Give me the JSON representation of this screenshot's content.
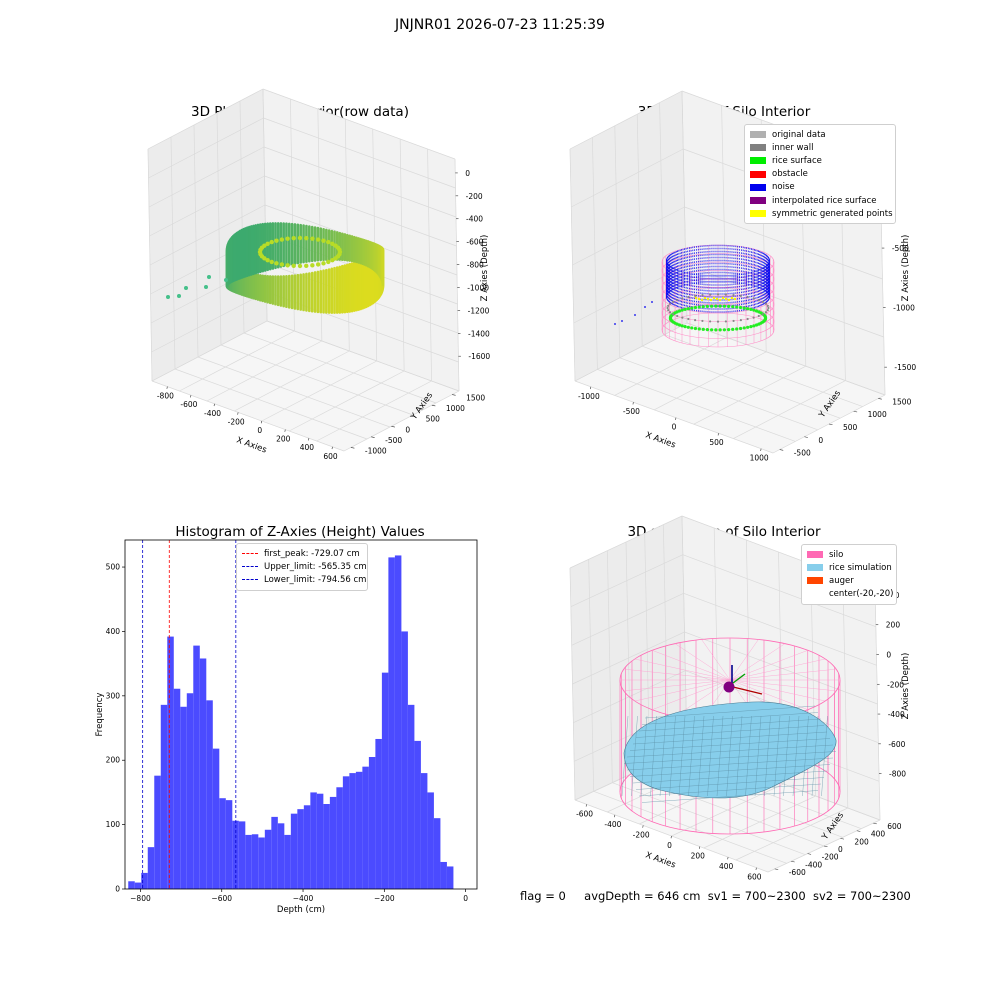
{
  "suptitle": "JNJNR01 2026-07-23 11:25:39",
  "panels": {
    "raw": {
      "title": "3D Plot of Silo Interior(row data)",
      "x_label": "X Axies",
      "y_label": "Y Axies",
      "z_label": "Z Axies (Depth)",
      "x_ticks": [
        "-800",
        "-600",
        "-400",
        "-200",
        "0",
        "200",
        "400",
        "600"
      ],
      "y_ticks": [
        "-1000",
        "-500",
        "0",
        "500",
        "1000",
        "1500"
      ],
      "z_ticks": [
        "0",
        "-200",
        "-400",
        "-600",
        "-800",
        "-1000",
        "-1200",
        "-1400",
        "-1600"
      ]
    },
    "classify": {
      "title": "3D classify of Silo Interior",
      "x_label": "X Axies",
      "y_label": "Y Axies",
      "z_label": "Z Axies (Depth)",
      "x_ticks": [
        "-1000",
        "-500",
        "0",
        "500",
        "1000"
      ],
      "y_ticks": [
        "-500",
        "0",
        "500",
        "1000",
        "1500"
      ],
      "z_ticks": [
        "0",
        "-500",
        "-1000",
        "-1500"
      ],
      "legend": [
        {
          "label": "original data",
          "color": "#b0b0b0"
        },
        {
          "label": "inner wall",
          "color": "#808080"
        },
        {
          "label": "rice surface",
          "color": "#00ee00"
        },
        {
          "label": "obstacle",
          "color": "#ff0000"
        },
        {
          "label": "noise",
          "color": "#0000ee"
        },
        {
          "label": "interpolated rice surface",
          "color": "#800080"
        },
        {
          "label": "symmetric generated points",
          "color": "#ffff00"
        }
      ]
    },
    "simulation": {
      "title": "3D simulation of Silo Interior",
      "x_label": "X Axies",
      "y_label": "Y Axies",
      "z_label": "Z Axies (Depth)",
      "x_ticks": [
        "-600",
        "-400",
        "-200",
        "0",
        "200",
        "400",
        "600"
      ],
      "y_ticks": [
        "-600",
        "-400",
        "-200",
        "0",
        "200",
        "400",
        "600"
      ],
      "z_ticks": [
        "400",
        "200",
        "0",
        "-200",
        "-400",
        "-600",
        "-800"
      ],
      "legend": [
        {
          "label": "silo",
          "color": "#ff69b4"
        },
        {
          "label": "rice simulation",
          "color": "#87ceeb"
        },
        {
          "label": "auger",
          "color": "#ff4500"
        },
        {
          "label": "center(-20,-20)",
          "color": ""
        }
      ]
    }
  },
  "chart_data": {
    "type": "bar",
    "title": "Histogram of Z-Axies (Height) Values",
    "xlabel": "Depth (cm)",
    "ylabel": "Frequency",
    "xlim": [
      -838,
      28
    ],
    "ylim": [
      0,
      542
    ],
    "x_ticks": [
      -800,
      -600,
      -400,
      -200,
      0
    ],
    "y_ticks": [
      0,
      100,
      200,
      300,
      400,
      500
    ],
    "bin_width": 16,
    "bin_start": -830,
    "values": [
      12,
      10,
      25,
      65,
      176,
      286,
      392,
      311,
      283,
      304,
      378,
      358,
      293,
      218,
      141,
      138,
      106,
      105,
      84,
      85,
      80,
      92,
      112,
      102,
      84,
      117,
      124,
      130,
      150,
      148,
      132,
      143,
      158,
      175,
      180,
      182,
      190,
      205,
      233,
      336,
      515,
      518,
      400,
      286,
      230,
      180,
      150,
      110,
      42,
      35
    ],
    "lines": [
      {
        "label": "first_peak: -729.07 cm",
        "x": -729.07,
        "color": "#ff0000"
      },
      {
        "label": "Upper_limit: -565.35 cm",
        "x": -565.35,
        "color": "#0000cc"
      },
      {
        "label": "Lower_limit: -794.56 cm",
        "x": -794.56,
        "color": "#0000cc"
      }
    ],
    "bar_color": "#4b4bff"
  },
  "status": {
    "flag": "flag = 0",
    "avg": "avgDepth = 646 cm",
    "sv1": "sv1 = 700~2300",
    "sv2": "sv2 = 700~2300"
  }
}
